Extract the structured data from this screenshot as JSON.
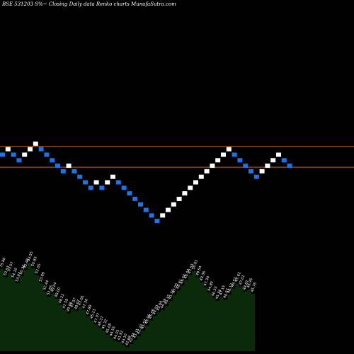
{
  "title": "BSE 531203 S%~  Closing Daily data  Renko  charts MunafaSutra.com",
  "colors": {
    "background": "#000000",
    "up_brick": "#ffffff",
    "down_brick": "#1e74e6",
    "reference_line": "#c86414",
    "volume_fill": "#0a2a0a",
    "label_text": "#ffffff"
  },
  "chart_data": {
    "type": "renko",
    "title": "BSE 531203 S%~  Closing Daily data  Renko  charts MunafaSutra.com",
    "grid": false,
    "reference_lines": [
      {
        "level": 1.0,
        "label": ""
      },
      {
        "level": -2.0,
        "label": ""
      }
    ],
    "bricks": [
      {
        "level": 0,
        "dir": "down"
      },
      {
        "level": 1,
        "dir": "up"
      },
      {
        "level": 0,
        "dir": "down"
      },
      {
        "level": -1,
        "dir": "down"
      },
      {
        "level": 0,
        "dir": "up"
      },
      {
        "level": 1,
        "dir": "up"
      },
      {
        "level": 2,
        "dir": "up"
      },
      {
        "level": 1,
        "dir": "down"
      },
      {
        "level": 0,
        "dir": "down"
      },
      {
        "level": -1,
        "dir": "down"
      },
      {
        "level": -2,
        "dir": "down"
      },
      {
        "level": -3,
        "dir": "down"
      },
      {
        "level": -2,
        "dir": "up"
      },
      {
        "level": -3,
        "dir": "down"
      },
      {
        "level": -4,
        "dir": "down"
      },
      {
        "level": -5,
        "dir": "down"
      },
      {
        "level": -6,
        "dir": "down"
      },
      {
        "level": -5,
        "dir": "up"
      },
      {
        "level": -6,
        "dir": "down"
      },
      {
        "level": -5,
        "dir": "up"
      },
      {
        "level": -4,
        "dir": "up"
      },
      {
        "level": -5,
        "dir": "down"
      },
      {
        "level": -6,
        "dir": "down"
      },
      {
        "level": -7,
        "dir": "down"
      },
      {
        "level": -8,
        "dir": "down"
      },
      {
        "level": -9,
        "dir": "down"
      },
      {
        "level": -10,
        "dir": "down"
      },
      {
        "level": -11,
        "dir": "down"
      },
      {
        "level": -12,
        "dir": "down"
      },
      {
        "level": -11,
        "dir": "up"
      },
      {
        "level": -10,
        "dir": "up"
      },
      {
        "level": -9,
        "dir": "up"
      },
      {
        "level": -8,
        "dir": "up"
      },
      {
        "level": -7,
        "dir": "up"
      },
      {
        "level": -6,
        "dir": "up"
      },
      {
        "level": -5,
        "dir": "up"
      },
      {
        "level": -4,
        "dir": "up"
      },
      {
        "level": -3,
        "dir": "up"
      },
      {
        "level": -2,
        "dir": "up"
      },
      {
        "level": -1,
        "dir": "up"
      },
      {
        "level": 0,
        "dir": "up"
      },
      {
        "level": 1,
        "dir": "up"
      },
      {
        "level": 0,
        "dir": "down"
      },
      {
        "level": -1,
        "dir": "down"
      },
      {
        "level": -2,
        "dir": "down"
      },
      {
        "level": -3,
        "dir": "down"
      },
      {
        "level": -4,
        "dir": "down"
      },
      {
        "level": -3,
        "dir": "up"
      },
      {
        "level": -2,
        "dir": "up"
      },
      {
        "level": -1,
        "dir": "up"
      },
      {
        "level": 0,
        "dir": "up"
      },
      {
        "level": -1,
        "dir": "down"
      },
      {
        "level": -2,
        "dir": "down"
      }
    ],
    "volume": [
      80,
      72,
      76,
      70,
      66,
      73,
      79,
      86,
      81,
      74,
      66,
      58,
      53,
      56,
      51,
      45,
      40,
      37,
      41,
      39,
      43,
      40,
      34,
      30,
      26,
      23,
      20,
      16,
      13,
      10,
      9,
      6,
      4,
      7,
      11,
      15,
      20,
      25,
      30,
      34,
      38,
      40,
      44,
      49,
      55,
      59,
      64,
      69,
      74,
      78,
      72,
      67,
      62,
      57,
      52,
      49,
      53,
      50,
      55,
      61,
      66,
      63,
      58,
      60,
      56
    ],
    "volume_labels": [
      "75.86",
      "53.53",
      "53.57",
      "54.10",
      "53.87",
      "50.36",
      "55.48",
      "53.55",
      "50.83",
      "52.05",
      "53.89",
      "52.44",
      "51.85",
      "49.04",
      "48.00",
      "48.22",
      "47.59",
      "49.66",
      "47.57",
      "48.97",
      "47.06",
      "47.50",
      "47.89",
      "45.23",
      "47.07",
      "45.37",
      "45.32",
      "45.08",
      "44.55",
      "44.01",
      "41.92",
      "43.10",
      "42.68",
      "42.84",
      "43.31",
      "42.20",
      "45.52",
      "43.96",
      "45.06",
      "44.03",
      "45.64",
      "44.39",
      "45.37",
      "45.34",
      "47.00",
      "48.61",
      "49.64",
      "46.04",
      "47.53",
      "50.61",
      "48.54",
      "49.36",
      "47.30",
      "44.80",
      "46.33",
      "45.34",
      "47.15",
      "46.67",
      "48.12",
      "49.52",
      "47.62",
      "47.01",
      "48.87",
      "46.95",
      "45.76"
    ]
  }
}
